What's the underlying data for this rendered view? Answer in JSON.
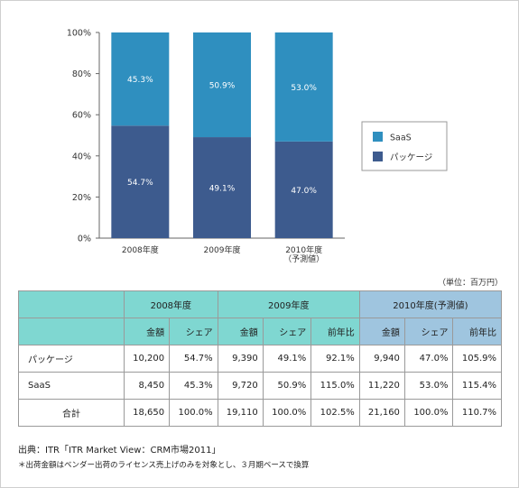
{
  "chart_data": {
    "type": "bar",
    "stacked": true,
    "percent_stacked": true,
    "categories": [
      "2008年度",
      "2009年度",
      "2010年度\n（予測値）"
    ],
    "series": [
      {
        "name": "パッケージ",
        "values": [
          54.7,
          49.1,
          47.0
        ],
        "labels": [
          "54.7%",
          "49.1%",
          "47.0%"
        ],
        "color": "#3d5b8e"
      },
      {
        "name": "SaaS",
        "values": [
          45.3,
          50.9,
          53.0
        ],
        "labels": [
          "45.3%",
          "50.9%",
          "53.0%"
        ],
        "color": "#2f8fbf"
      }
    ],
    "y_ticks": [
      "0%",
      "20%",
      "40%",
      "60%",
      "80%",
      "100%"
    ],
    "ylim": [
      0,
      100
    ],
    "legend_position": "right",
    "grid": false
  },
  "unit_note": "（単位：百万円）",
  "table": {
    "years": [
      "2008年度",
      "2009年度",
      "2010年度(予測値)"
    ],
    "subheaders": {
      "amount": "金額",
      "share": "シェア",
      "yoy": "前年比"
    },
    "rows": [
      {
        "label": "パッケージ",
        "cells": [
          "10,200",
          "54.7%",
          "9,390",
          "49.1%",
          "92.1%",
          "9,940",
          "47.0%",
          "105.9%"
        ]
      },
      {
        "label": "SaaS",
        "cells": [
          "8,450",
          "45.3%",
          "9,720",
          "50.9%",
          "115.0%",
          "11,220",
          "53.0%",
          "115.4%"
        ]
      },
      {
        "label": "合計",
        "cells": [
          "18,650",
          "100.0%",
          "19,110",
          "100.0%",
          "102.5%",
          "21,160",
          "100.0%",
          "110.7%"
        ]
      }
    ]
  },
  "source": "出典：ITR「ITR Market View：CRM市場2011」",
  "footnote": "＊出荷金額はベンダー出荷のライセンス売上げのみを対象とし、３月期ベースで換算"
}
